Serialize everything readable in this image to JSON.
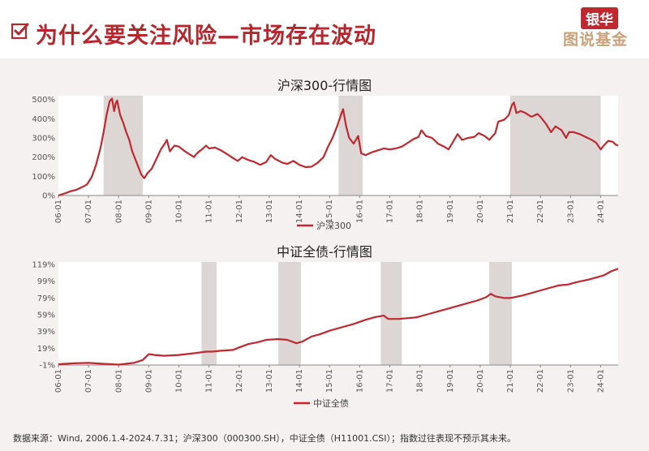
{
  "header": {
    "title": "为什么要关注风险—市场存在波动",
    "logo_line1": "银华",
    "logo_line2": "图说基金"
  },
  "colors": {
    "accent": "#b5272d",
    "series": "#c0282f",
    "shade": "#dcd7d5",
    "background": "#f4f1f0"
  },
  "icons": {
    "title_icon": "checkbox-check-icon"
  },
  "footer": {
    "source": "数据来源：Wind, 2006.1.4-2024.7.31；沪深300（000300.SH），中证全债（H11001.CSI）；指数过往表现不预示其未来。"
  },
  "chart_data": [
    {
      "type": "line",
      "title": "沪深300-行情图",
      "legend": "沪深300",
      "legend_position": "bottom-center",
      "x_ticks": [
        "06-01",
        "07-01",
        "08-01",
        "09-01",
        "10-01",
        "11-01",
        "12-01",
        "13-01",
        "14-01",
        "15-01",
        "16-01",
        "17-01",
        "18-01",
        "19-01",
        "20-01",
        "21-01",
        "22-01",
        "23-01",
        "24-01"
      ],
      "y_ticks": [
        "0%",
        "100%",
        "200%",
        "300%",
        "400%",
        "500%"
      ],
      "ylim": [
        0,
        520
      ],
      "xlim": [
        2006.0,
        2024.58
      ],
      "shaded_periods": [
        [
          2007.5,
          2008.8
        ],
        [
          2015.3,
          2016.1
        ],
        [
          2021.0,
          2024.0
        ]
      ],
      "series": [
        {
          "name": "沪深300",
          "points": [
            [
              2006.0,
              0
            ],
            [
              2006.2,
              10
            ],
            [
              2006.4,
              22
            ],
            [
              2006.6,
              30
            ],
            [
              2006.8,
              45
            ],
            [
              2006.95,
              58
            ],
            [
              2007.1,
              95
            ],
            [
              2007.25,
              160
            ],
            [
              2007.4,
              250
            ],
            [
              2007.5,
              330
            ],
            [
              2007.6,
              420
            ],
            [
              2007.7,
              490
            ],
            [
              2007.78,
              505
            ],
            [
              2007.85,
              440
            ],
            [
              2007.9,
              480
            ],
            [
              2007.95,
              495
            ],
            [
              2008.05,
              420
            ],
            [
              2008.15,
              380
            ],
            [
              2008.25,
              330
            ],
            [
              2008.35,
              290
            ],
            [
              2008.45,
              230
            ],
            [
              2008.6,
              170
            ],
            [
              2008.75,
              110
            ],
            [
              2008.85,
              90
            ],
            [
              2008.95,
              115
            ],
            [
              2009.1,
              140
            ],
            [
              2009.25,
              190
            ],
            [
              2009.4,
              240
            ],
            [
              2009.55,
              275
            ],
            [
              2009.6,
              290
            ],
            [
              2009.7,
              230
            ],
            [
              2009.85,
              260
            ],
            [
              2010.0,
              255
            ],
            [
              2010.2,
              230
            ],
            [
              2010.4,
              210
            ],
            [
              2010.5,
              200
            ],
            [
              2010.6,
              220
            ],
            [
              2010.8,
              245
            ],
            [
              2010.9,
              260
            ],
            [
              2011.0,
              245
            ],
            [
              2011.2,
              250
            ],
            [
              2011.4,
              235
            ],
            [
              2011.6,
              215
            ],
            [
              2011.8,
              195
            ],
            [
              2011.95,
              180
            ],
            [
              2012.1,
              200
            ],
            [
              2012.3,
              185
            ],
            [
              2012.5,
              175
            ],
            [
              2012.7,
              160
            ],
            [
              2012.9,
              175
            ],
            [
              2013.05,
              210
            ],
            [
              2013.2,
              190
            ],
            [
              2013.45,
              170
            ],
            [
              2013.6,
              165
            ],
            [
              2013.8,
              180
            ],
            [
              2014.0,
              160
            ],
            [
              2014.2,
              148
            ],
            [
              2014.4,
              150
            ],
            [
              2014.6,
              170
            ],
            [
              2014.8,
              200
            ],
            [
              2014.95,
              255
            ],
            [
              2015.1,
              300
            ],
            [
              2015.25,
              360
            ],
            [
              2015.4,
              430
            ],
            [
              2015.45,
              450
            ],
            [
              2015.55,
              360
            ],
            [
              2015.65,
              300
            ],
            [
              2015.8,
              270
            ],
            [
              2015.95,
              310
            ],
            [
              2016.05,
              220
            ],
            [
              2016.2,
              210
            ],
            [
              2016.4,
              225
            ],
            [
              2016.6,
              235
            ],
            [
              2016.8,
              245
            ],
            [
              2017.0,
              240
            ],
            [
              2017.2,
              245
            ],
            [
              2017.4,
              255
            ],
            [
              2017.6,
              275
            ],
            [
              2017.8,
              295
            ],
            [
              2017.95,
              305
            ],
            [
              2018.05,
              340
            ],
            [
              2018.2,
              310
            ],
            [
              2018.4,
              300
            ],
            [
              2018.6,
              270
            ],
            [
              2018.8,
              255
            ],
            [
              2018.95,
              240
            ],
            [
              2019.1,
              280
            ],
            [
              2019.25,
              320
            ],
            [
              2019.4,
              290
            ],
            [
              2019.6,
              300
            ],
            [
              2019.8,
              305
            ],
            [
              2019.95,
              325
            ],
            [
              2020.15,
              310
            ],
            [
              2020.3,
              290
            ],
            [
              2020.5,
              325
            ],
            [
              2020.6,
              385
            ],
            [
              2020.8,
              395
            ],
            [
              2020.95,
              420
            ],
            [
              2021.05,
              470
            ],
            [
              2021.12,
              485
            ],
            [
              2021.2,
              430
            ],
            [
              2021.35,
              440
            ],
            [
              2021.5,
              430
            ],
            [
              2021.7,
              410
            ],
            [
              2021.9,
              425
            ],
            [
              2022.0,
              410
            ],
            [
              2022.2,
              370
            ],
            [
              2022.35,
              330
            ],
            [
              2022.5,
              360
            ],
            [
              2022.7,
              340
            ],
            [
              2022.85,
              300
            ],
            [
              2022.95,
              330
            ],
            [
              2023.1,
              330
            ],
            [
              2023.3,
              320
            ],
            [
              2023.5,
              305
            ],
            [
              2023.7,
              290
            ],
            [
              2023.85,
              275
            ],
            [
              2024.0,
              240
            ],
            [
              2024.1,
              260
            ],
            [
              2024.25,
              285
            ],
            [
              2024.4,
              280
            ],
            [
              2024.5,
              265
            ],
            [
              2024.58,
              260
            ]
          ]
        }
      ]
    },
    {
      "type": "line",
      "title": "中证全债-行情图",
      "legend": "中证全债",
      "legend_position": "bottom-center",
      "x_ticks": [
        "06-01",
        "07-01",
        "08-01",
        "09-01",
        "10-01",
        "11-01",
        "12-01",
        "13-01",
        "14-01",
        "15-01",
        "16-01",
        "17-01",
        "18-01",
        "19-01",
        "20-01",
        "21-01",
        "22-01",
        "23-01",
        "24-01"
      ],
      "y_ticks": [
        "-1%",
        "19%",
        "39%",
        "59%",
        "79%",
        "99%",
        "119%"
      ],
      "ylim": [
        -1,
        122
      ],
      "xlim": [
        2006.0,
        2024.58
      ],
      "shaded_periods": [
        [
          2010.75,
          2011.25
        ],
        [
          2013.3,
          2014.05
        ],
        [
          2016.7,
          2017.4
        ],
        [
          2020.3,
          2021.05
        ]
      ],
      "series": [
        {
          "name": "中证全债",
          "points": [
            [
              2006.0,
              0
            ],
            [
              2006.5,
              1
            ],
            [
              2007.0,
              1.5
            ],
            [
              2007.5,
              0.5
            ],
            [
              2008.0,
              -0.5
            ],
            [
              2008.5,
              1.5
            ],
            [
              2008.8,
              5
            ],
            [
              2009.0,
              12
            ],
            [
              2009.2,
              11
            ],
            [
              2009.5,
              10
            ],
            [
              2010.0,
              11
            ],
            [
              2010.5,
              13
            ],
            [
              2010.9,
              15
            ],
            [
              2011.1,
              15
            ],
            [
              2011.4,
              16
            ],
            [
              2011.8,
              17
            ],
            [
              2012.0,
              20
            ],
            [
              2012.3,
              24
            ],
            [
              2012.6,
              26
            ],
            [
              2012.9,
              29
            ],
            [
              2013.3,
              30
            ],
            [
              2013.6,
              29
            ],
            [
              2013.9,
              25
            ],
            [
              2014.1,
              27
            ],
            [
              2014.4,
              33
            ],
            [
              2014.7,
              36
            ],
            [
              2015.0,
              40
            ],
            [
              2015.4,
              44
            ],
            [
              2015.8,
              48
            ],
            [
              2016.2,
              53
            ],
            [
              2016.5,
              56
            ],
            [
              2016.8,
              58
            ],
            [
              2016.95,
              54
            ],
            [
              2017.3,
              54
            ],
            [
              2017.6,
              55
            ],
            [
              2017.9,
              56
            ],
            [
              2018.3,
              60
            ],
            [
              2018.6,
              63
            ],
            [
              2019.0,
              67
            ],
            [
              2019.3,
              70
            ],
            [
              2019.6,
              73
            ],
            [
              2019.9,
              76
            ],
            [
              2020.2,
              80
            ],
            [
              2020.35,
              84
            ],
            [
              2020.5,
              81
            ],
            [
              2020.8,
              79
            ],
            [
              2021.0,
              79
            ],
            [
              2021.4,
              82
            ],
            [
              2021.8,
              86
            ],
            [
              2022.2,
              90
            ],
            [
              2022.6,
              94
            ],
            [
              2022.9,
              95
            ],
            [
              2023.2,
              98
            ],
            [
              2023.6,
              101
            ],
            [
              2023.9,
              104
            ],
            [
              2024.1,
              106
            ],
            [
              2024.35,
              111
            ],
            [
              2024.58,
              114
            ]
          ]
        }
      ]
    }
  ]
}
